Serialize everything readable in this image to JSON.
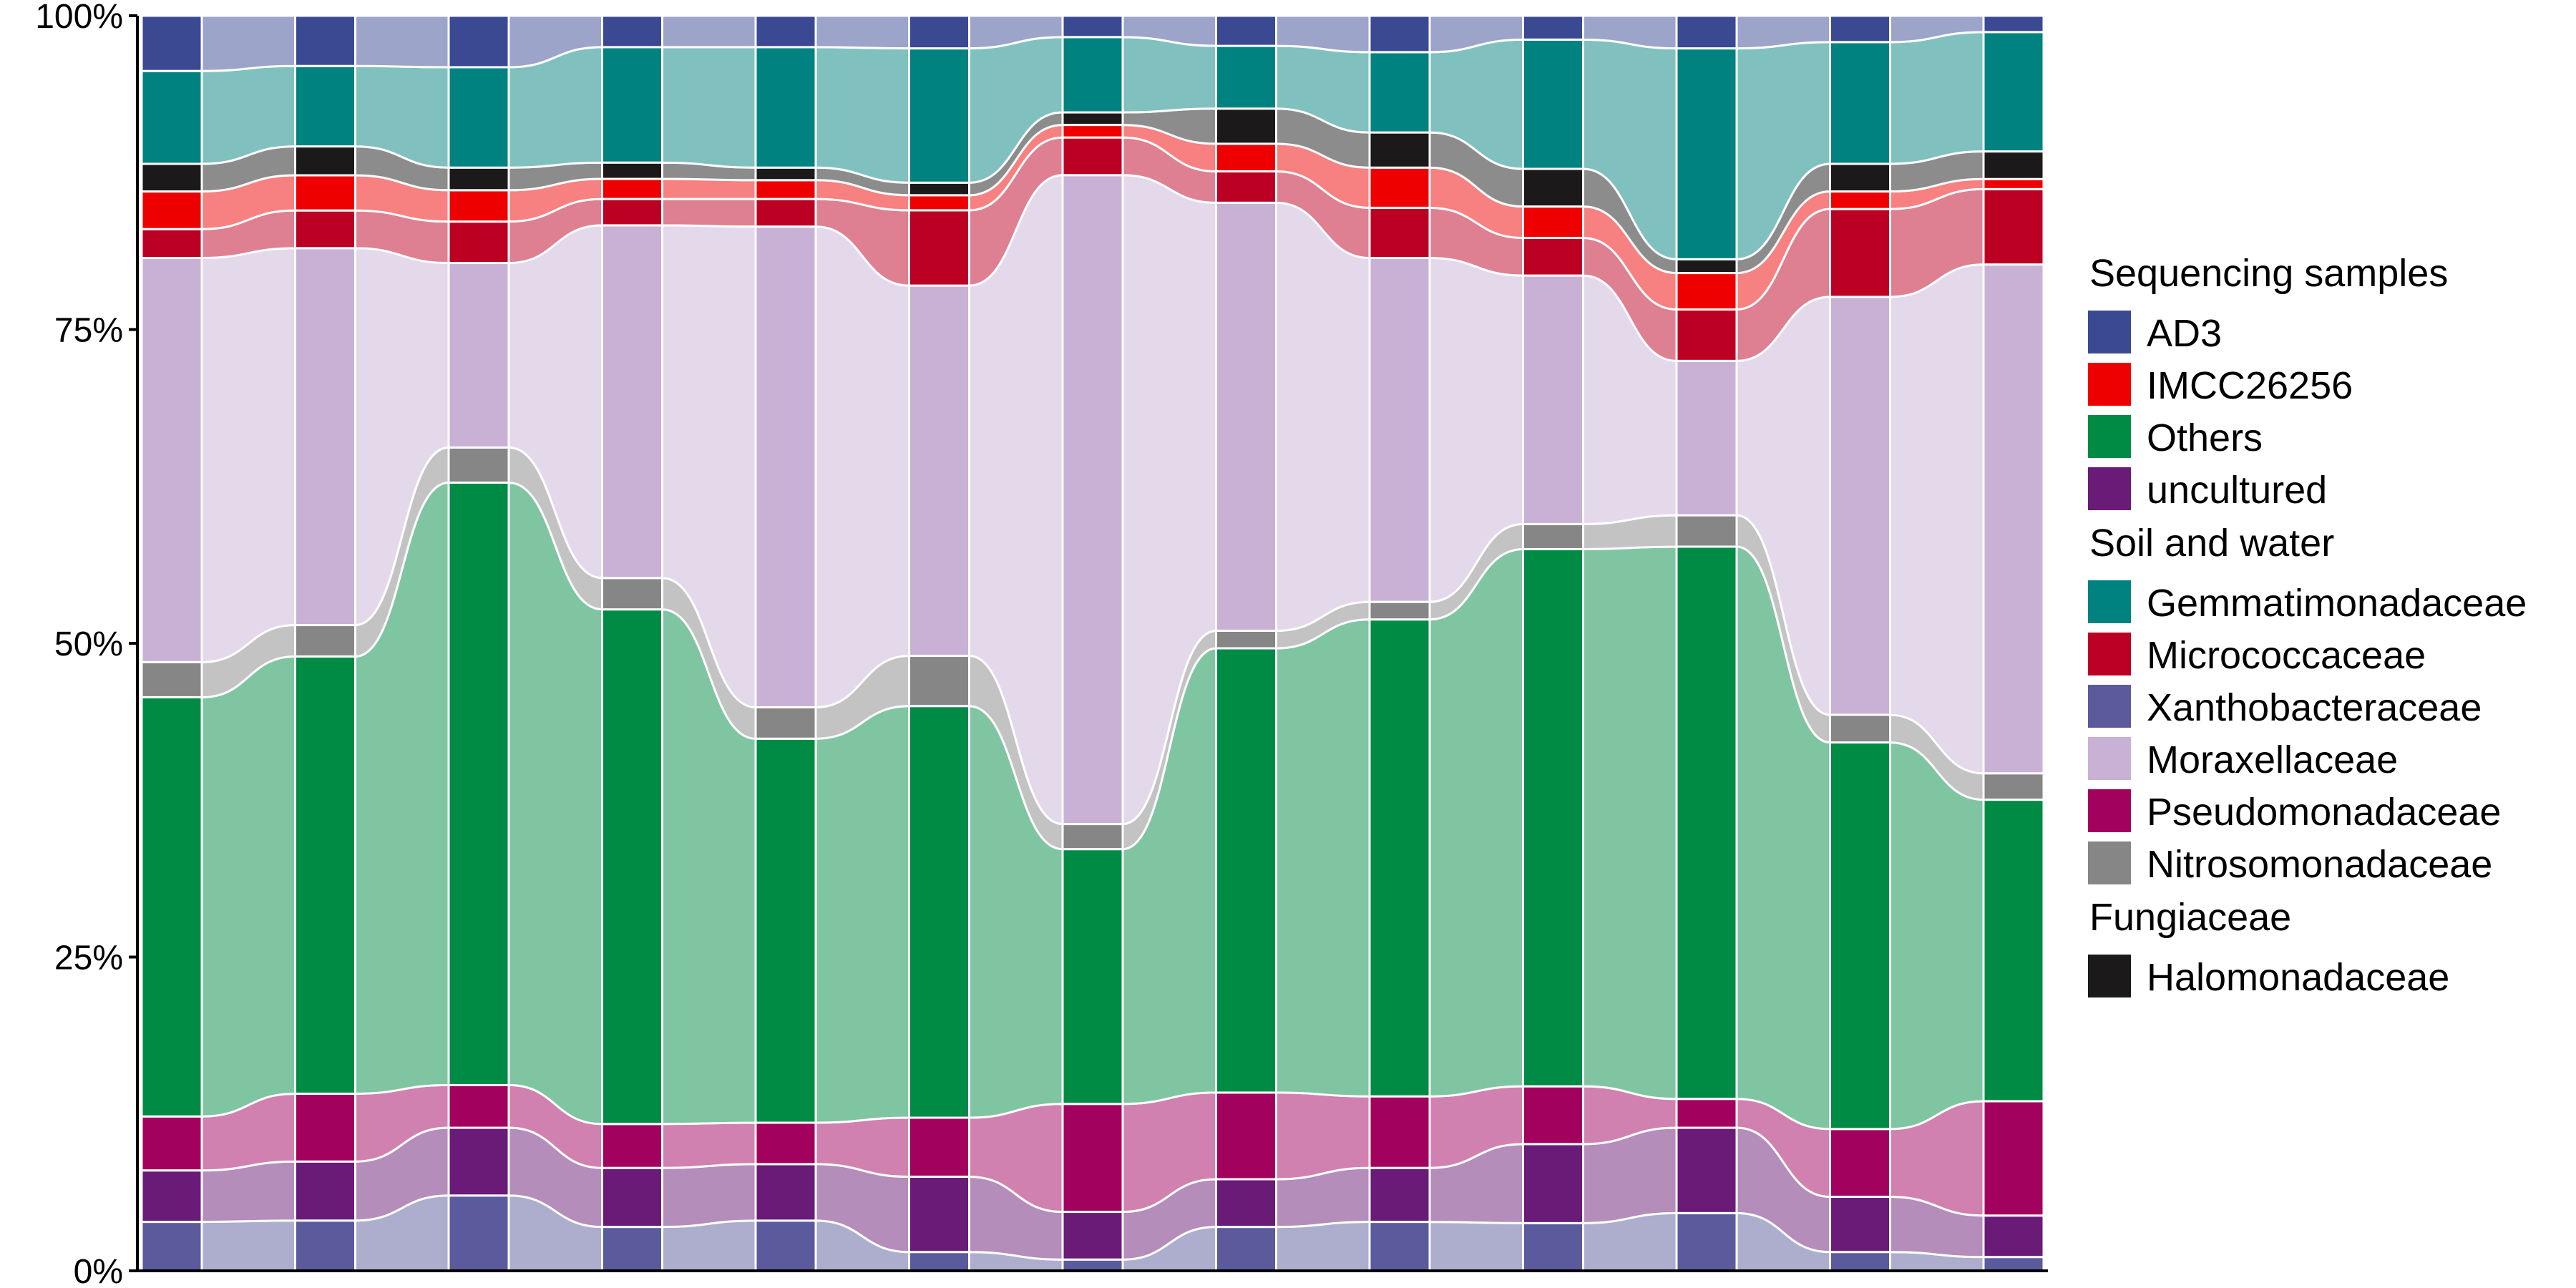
{
  "chart_data": {
    "type": "alluvial",
    "title": "",
    "xlabel": "",
    "ylabel": "",
    "ylim": [
      0,
      1
    ],
    "y_ticks": [
      "0%",
      "25%",
      "50%",
      "75%",
      "100%"
    ],
    "n_samples": 13,
    "grid": false,
    "legend_position": "right",
    "stacking_order": "bottom-to-top",
    "series": [
      {
        "name": "Xanthobacteraceae",
        "color": "#5B5A9C",
        "values": [
          0.039,
          0.04,
          0.06,
          0.035,
          0.04,
          0.015,
          0.009,
          0.035,
          0.039,
          0.038,
          0.046,
          0.015,
          0.011
        ]
      },
      {
        "name": "uncultured",
        "color": "#691B77",
        "values": [
          0.041,
          0.047,
          0.054,
          0.047,
          0.045,
          0.06,
          0.038,
          0.038,
          0.043,
          0.063,
          0.068,
          0.044,
          0.033
        ]
      },
      {
        "name": "Pseudomonadaceae",
        "color": "#A2025E",
        "values": [
          0.043,
          0.054,
          0.034,
          0.035,
          0.033,
          0.047,
          0.086,
          0.069,
          0.057,
          0.046,
          0.023,
          0.054,
          0.091
        ]
      },
      {
        "name": "Others",
        "color": "#008B45",
        "values": [
          0.334,
          0.348,
          0.48,
          0.41,
          0.306,
          0.328,
          0.203,
          0.354,
          0.38,
          0.428,
          0.44,
          0.308,
          0.24
        ]
      },
      {
        "name": "Nitrosomonadaceae",
        "color": "#868686",
        "values": [
          0.028,
          0.025,
          0.028,
          0.025,
          0.025,
          0.04,
          0.02,
          0.014,
          0.014,
          0.02,
          0.025,
          0.022,
          0.021
        ]
      },
      {
        "name": "Moraxellaceae",
        "color": "#C9B1D6",
        "values": [
          0.322,
          0.3,
          0.147,
          0.281,
          0.383,
          0.295,
          0.517,
          0.341,
          0.274,
          0.198,
          0.123,
          0.333,
          0.405
        ]
      },
      {
        "name": "Micrococcaceae",
        "color": "#BC0024",
        "values": [
          0.023,
          0.03,
          0.033,
          0.021,
          0.022,
          0.06,
          0.03,
          0.025,
          0.04,
          0.03,
          0.041,
          0.07,
          0.06
        ]
      },
      {
        "name": "IMCC26256",
        "color": "#EE0000",
        "values": [
          0.03,
          0.028,
          0.025,
          0.016,
          0.015,
          0.012,
          0.01,
          0.022,
          0.032,
          0.025,
          0.029,
          0.014,
          0.008
        ]
      },
      {
        "name": "Halomonadaceae",
        "color": "#1B1919",
        "values": [
          0.022,
          0.023,
          0.018,
          0.013,
          0.01,
          0.01,
          0.01,
          0.028,
          0.028,
          0.03,
          0.011,
          0.022,
          0.022
        ]
      },
      {
        "name": "Gemmatimonadaceae",
        "color": "#008280",
        "values": [
          0.074,
          0.064,
          0.08,
          0.092,
          0.096,
          0.107,
          0.06,
          0.05,
          0.064,
          0.103,
          0.168,
          0.097,
          0.095
        ]
      },
      {
        "name": "AD3",
        "color": "#3B4992",
        "values": [
          0.044,
          0.04,
          0.041,
          0.025,
          0.025,
          0.026,
          0.017,
          0.024,
          0.029,
          0.019,
          0.026,
          0.021,
          0.013
        ]
      }
    ],
    "legend": [
      {
        "heading": "Sequencing samples",
        "items": [
          {
            "label": "AD3",
            "color": "#3B4992"
          },
          {
            "label": "IMCC26256",
            "color": "#EE0000"
          },
          {
            "label": "Others",
            "color": "#008B45"
          },
          {
            "label": "uncultured",
            "color": "#691B77"
          }
        ]
      },
      {
        "heading": "Soil and water",
        "items": [
          {
            "label": "Gemmatimonadaceae",
            "color": "#008280"
          },
          {
            "label": "Micrococcaceae",
            "color": "#BC0024"
          },
          {
            "label": "Xanthobacteraceae",
            "color": "#5B5A9C"
          },
          {
            "label": "Moraxellaceae",
            "color": "#C9B1D6"
          },
          {
            "label": "Pseudomonadaceae",
            "color": "#A2025E"
          },
          {
            "label": "Nitrosomonadaceae",
            "color": "#868686"
          }
        ]
      },
      {
        "heading": "Fungiaceae",
        "items": [
          {
            "label": "Halomonadaceae",
            "color": "#1B1919"
          }
        ]
      }
    ]
  }
}
